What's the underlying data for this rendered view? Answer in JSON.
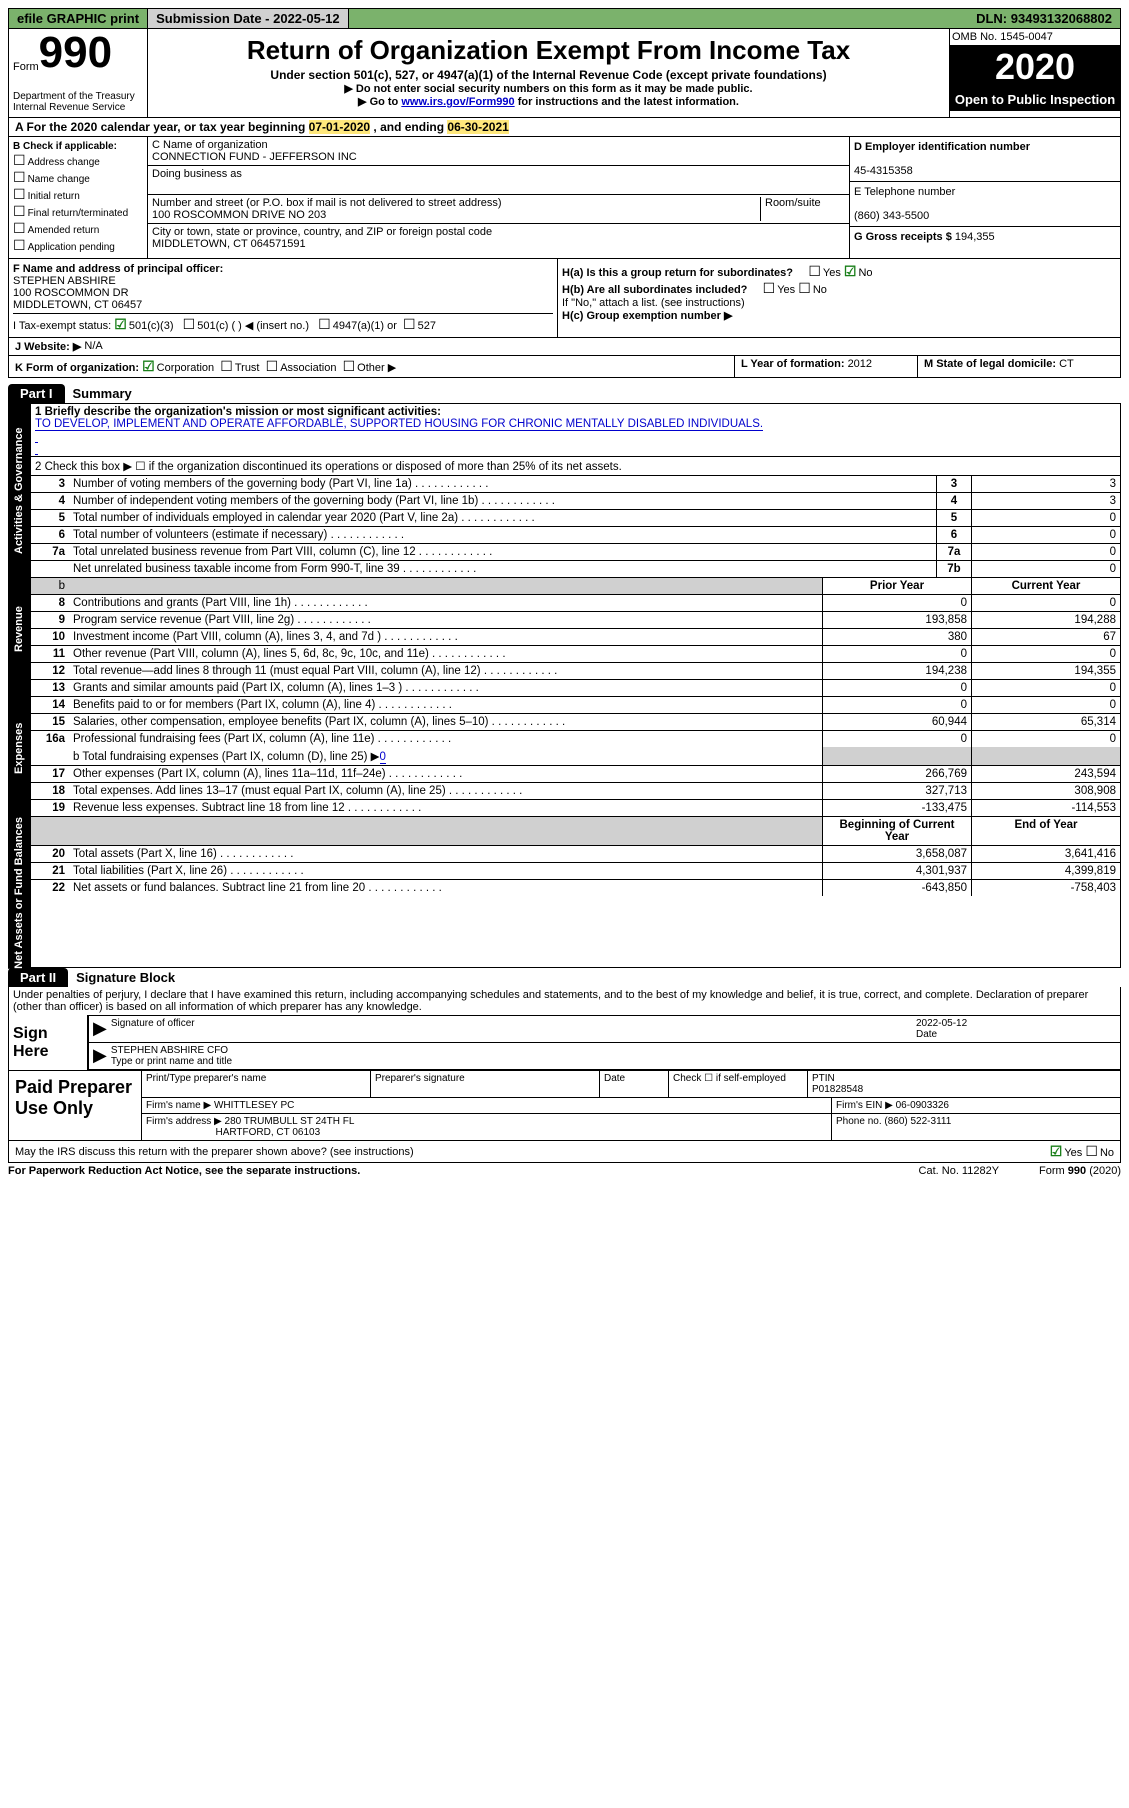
{
  "topbar": {
    "efile": "efile GRAPHIC print",
    "subdate_label": "Submission Date - ",
    "subdate": "2022-05-12",
    "dln_label": "DLN: ",
    "dln": "93493132068802"
  },
  "header": {
    "form_word": "Form",
    "form_num": "990",
    "dept": "Department of the Treasury",
    "irs": "Internal Revenue Service",
    "title": "Return of Organization Exempt From Income Tax",
    "sub1": "Under section 501(c), 527, or 4947(a)(1) of the Internal Revenue Code (except private foundations)",
    "sub2": "▶ Do not enter social security numbers on this form as it may be made public.",
    "sub3_pre": "▶ Go to ",
    "sub3_link": "www.irs.gov/Form990",
    "sub3_post": " for instructions and the latest information.",
    "omb": "OMB No. 1545-0047",
    "year": "2020",
    "open": "Open to Public Inspection"
  },
  "rowA": {
    "text_pre": "A For the 2020 calendar year, or tax year beginning ",
    "begin": "07-01-2020",
    "mid": " , and ending ",
    "end": "06-30-2021"
  },
  "colB": {
    "hdr": "B Check if applicable:",
    "items": [
      "Address change",
      "Name change",
      "Initial return",
      "Final return/terminated",
      "Amended return",
      "Application pending"
    ]
  },
  "colC": {
    "name_lbl": "C Name of organization",
    "name": "CONNECTION FUND - JEFFERSON INC",
    "dba_lbl": "Doing business as",
    "addr_lbl": "Number and street (or P.O. box if mail is not delivered to street address)",
    "room_lbl": "Room/suite",
    "addr": "100 ROSCOMMON DRIVE NO 203",
    "city_lbl": "City or town, state or province, country, and ZIP or foreign postal code",
    "city": "MIDDLETOWN, CT  064571591"
  },
  "colD": {
    "ein_lbl": "D Employer identification number",
    "ein": "45-4315358",
    "tel_lbl": "E Telephone number",
    "tel": "(860) 343-5500",
    "gross_lbl": "G Gross receipts $ ",
    "gross": "194,355"
  },
  "rowF": {
    "lbl": "F Name and address of principal officer:",
    "name": "STEPHEN ABSHIRE",
    "addr1": "100 ROSCOMMON DR",
    "addr2": "MIDDLETOWN, CT  06457"
  },
  "rowH": {
    "ha": "H(a)  Is this a group return for subordinates?",
    "hb": "H(b)  Are all subordinates included?",
    "hb2": "If \"No,\" attach a list. (see instructions)",
    "hc": "H(c)  Group exemption number ▶",
    "yes": "Yes",
    "no": "No"
  },
  "rowI": {
    "lbl": "I  Tax-exempt status:",
    "o1": "501(c)(3)",
    "o2": "501(c) (    ) ◀ (insert no.)",
    "o3": "4947(a)(1) or",
    "o4": "527"
  },
  "rowJ": {
    "lbl": "J  Website: ▶",
    "val": "N/A"
  },
  "rowK": {
    "lbl": "K Form of organization:",
    "o1": "Corporation",
    "o2": "Trust",
    "o3": "Association",
    "o4": "Other ▶",
    "L_lbl": "L Year of formation: ",
    "L_val": "2012",
    "M_lbl": "M State of legal domicile: ",
    "M_val": "CT"
  },
  "part1": {
    "tab": "Part I",
    "title": "Summary",
    "sections": {
      "gov": "Activities & Governance",
      "rev": "Revenue",
      "exp": "Expenses",
      "net": "Net Assets or Fund Balances"
    },
    "line1_lbl": "1  Briefly describe the organization's mission or most significant activities:",
    "line1_val": "TO DEVELOP, IMPLEMENT AND OPERATE AFFORDABLE, SUPPORTED HOUSING FOR CHRONIC MENTALLY DISABLED INDIVIDUALS.",
    "line2": "2   Check this box ▶ ☐ if the organization discontinued its operations or disposed of more than 25% of its net assets.",
    "rows_simple": [
      {
        "n": "3",
        "t": "Number of voting members of the governing body (Part VI, line 1a)",
        "box": "3",
        "v": "3"
      },
      {
        "n": "4",
        "t": "Number of independent voting members of the governing body (Part VI, line 1b)",
        "box": "4",
        "v": "3"
      },
      {
        "n": "5",
        "t": "Total number of individuals employed in calendar year 2020 (Part V, line 2a)",
        "box": "5",
        "v": "0"
      },
      {
        "n": "6",
        "t": "Total number of volunteers (estimate if necessary)",
        "box": "6",
        "v": "0"
      },
      {
        "n": "7a",
        "t": "Total unrelated business revenue from Part VIII, column (C), line 12",
        "box": "7a",
        "v": "0"
      },
      {
        "n": "",
        "t": "Net unrelated business taxable income from Form 990-T, line 39",
        "box": "7b",
        "v": "0"
      }
    ],
    "hdr_prior": "Prior Year",
    "hdr_cur": "Current Year",
    "rows_two": [
      {
        "n": "8",
        "t": "Contributions and grants (Part VIII, line 1h)",
        "p": "0",
        "c": "0"
      },
      {
        "n": "9",
        "t": "Program service revenue (Part VIII, line 2g)",
        "p": "193,858",
        "c": "194,288"
      },
      {
        "n": "10",
        "t": "Investment income (Part VIII, column (A), lines 3, 4, and 7d )",
        "p": "380",
        "c": "67"
      },
      {
        "n": "11",
        "t": "Other revenue (Part VIII, column (A), lines 5, 6d, 8c, 9c, 10c, and 11e)",
        "p": "0",
        "c": "0"
      },
      {
        "n": "12",
        "t": "Total revenue—add lines 8 through 11 (must equal Part VIII, column (A), line 12)",
        "p": "194,238",
        "c": "194,355"
      }
    ],
    "rows_exp": [
      {
        "n": "13",
        "t": "Grants and similar amounts paid (Part IX, column (A), lines 1–3 )",
        "p": "0",
        "c": "0"
      },
      {
        "n": "14",
        "t": "Benefits paid to or for members (Part IX, column (A), line 4)",
        "p": "0",
        "c": "0"
      },
      {
        "n": "15",
        "t": "Salaries, other compensation, employee benefits (Part IX, column (A), lines 5–10)",
        "p": "60,944",
        "c": "65,314"
      },
      {
        "n": "16a",
        "t": "Professional fundraising fees (Part IX, column (A), line 11e)",
        "p": "0",
        "c": "0"
      }
    ],
    "line_b": "b  Total fundraising expenses (Part IX, column (D), line 25) ▶",
    "line_b_val": "0",
    "rows_exp2": [
      {
        "n": "17",
        "t": "Other expenses (Part IX, column (A), lines 11a–11d, 11f–24e)",
        "p": "266,769",
        "c": "243,594"
      },
      {
        "n": "18",
        "t": "Total expenses. Add lines 13–17 (must equal Part IX, column (A), line 25)",
        "p": "327,713",
        "c": "308,908"
      },
      {
        "n": "19",
        "t": "Revenue less expenses. Subtract line 18 from line 12",
        "p": "-133,475",
        "c": "-114,553"
      }
    ],
    "hdr_begin": "Beginning of Current Year",
    "hdr_end": "End of Year",
    "rows_net": [
      {
        "n": "20",
        "t": "Total assets (Part X, line 16)",
        "p": "3,658,087",
        "c": "3,641,416"
      },
      {
        "n": "21",
        "t": "Total liabilities (Part X, line 26)",
        "p": "4,301,937",
        "c": "4,399,819"
      },
      {
        "n": "22",
        "t": "Net assets or fund balances. Subtract line 21 from line 20",
        "p": "-643,850",
        "c": "-758,403"
      }
    ]
  },
  "part2": {
    "tab": "Part II",
    "title": "Signature Block",
    "decl": "Under penalties of perjury, I declare that I have examined this return, including accompanying schedules and statements, and to the best of my knowledge and belief, it is true, correct, and complete. Declaration of preparer (other than officer) is based on all information of which preparer has any knowledge.",
    "sign_here": "Sign Here",
    "sig_off": "Signature of officer",
    "date_lbl": "Date",
    "date": "2022-05-12",
    "name_title": "STEPHEN ABSHIRE CFO",
    "type_lbl": "Type or print name and title"
  },
  "prep": {
    "left": "Paid Preparer Use Only",
    "pt_name": "Print/Type preparer's name",
    "pt_sig": "Preparer's signature",
    "pt_date": "Date",
    "chk": "Check ☐ if self-employed",
    "ptin_lbl": "PTIN",
    "ptin": "P01828548",
    "firm_lbl": "Firm's name     ▶ ",
    "firm": "WHITTLESEY PC",
    "ein_lbl": "Firm's EIN ▶ ",
    "ein": "06-0903326",
    "addr_lbl": "Firm's address ▶ ",
    "addr1": "280 TRUMBULL ST 24TH FL",
    "addr2": "HARTFORD, CT  06103",
    "phone_lbl": "Phone no. ",
    "phone": "(860) 522-3111"
  },
  "bottom": {
    "q": "May the IRS discuss this return with the preparer shown above? (see instructions)",
    "yes": "Yes",
    "no": "No",
    "pra": "For Paperwork Reduction Act Notice, see the separate instructions.",
    "cat": "Cat. No. 11282Y",
    "form": "Form 990 (2020)"
  }
}
